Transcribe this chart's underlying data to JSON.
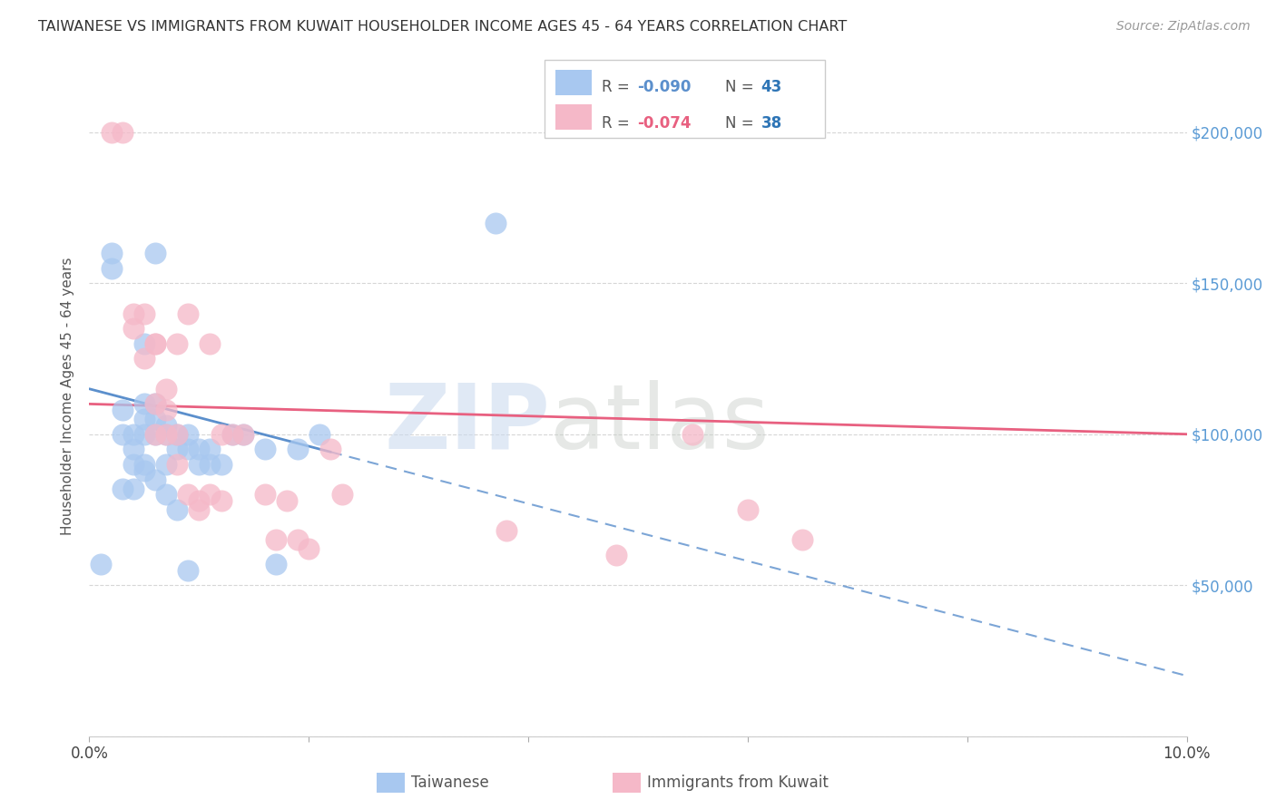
{
  "title": "TAIWANESE VS IMMIGRANTS FROM KUWAIT HOUSEHOLDER INCOME AGES 45 - 64 YEARS CORRELATION CHART",
  "source": "Source: ZipAtlas.com",
  "ylabel": "Householder Income Ages 45 - 64 years",
  "xlim": [
    0.0,
    0.1
  ],
  "ylim": [
    0,
    225000
  ],
  "yticks": [
    0,
    50000,
    100000,
    150000,
    200000
  ],
  "right_ytick_labels": [
    "",
    "$50,000",
    "$100,000",
    "$150,000",
    "$200,000"
  ],
  "blue_R": -0.09,
  "blue_N": 43,
  "pink_R": -0.074,
  "pink_N": 38,
  "blue_color": "#A8C8F0",
  "pink_color": "#F5B8C8",
  "blue_line_color": "#5B8FCC",
  "pink_line_color": "#E86080",
  "watermark_zip": "ZIP",
  "watermark_atlas": "atlas",
  "taiwanese_x": [
    0.001,
    0.002,
    0.002,
    0.003,
    0.003,
    0.003,
    0.004,
    0.004,
    0.004,
    0.004,
    0.005,
    0.005,
    0.005,
    0.005,
    0.005,
    0.005,
    0.006,
    0.006,
    0.006,
    0.006,
    0.006,
    0.007,
    0.007,
    0.007,
    0.007,
    0.008,
    0.008,
    0.008,
    0.009,
    0.009,
    0.009,
    0.01,
    0.01,
    0.011,
    0.011,
    0.012,
    0.013,
    0.014,
    0.016,
    0.017,
    0.019,
    0.021,
    0.037
  ],
  "taiwanese_y": [
    57000,
    155000,
    160000,
    82000,
    100000,
    108000,
    82000,
    90000,
    95000,
    100000,
    110000,
    88000,
    90000,
    100000,
    105000,
    130000,
    85000,
    100000,
    105000,
    110000,
    160000,
    80000,
    90000,
    100000,
    103000,
    75000,
    95000,
    100000,
    55000,
    95000,
    100000,
    90000,
    95000,
    90000,
    95000,
    90000,
    100000,
    100000,
    95000,
    57000,
    95000,
    100000,
    170000
  ],
  "kuwait_x": [
    0.002,
    0.003,
    0.004,
    0.004,
    0.005,
    0.005,
    0.006,
    0.006,
    0.006,
    0.006,
    0.007,
    0.007,
    0.007,
    0.008,
    0.008,
    0.008,
    0.009,
    0.009,
    0.01,
    0.01,
    0.011,
    0.011,
    0.012,
    0.012,
    0.013,
    0.014,
    0.016,
    0.017,
    0.018,
    0.019,
    0.02,
    0.022,
    0.023,
    0.038,
    0.048,
    0.055,
    0.06,
    0.065
  ],
  "kuwait_y": [
    200000,
    200000,
    135000,
    140000,
    125000,
    140000,
    100000,
    110000,
    130000,
    130000,
    100000,
    108000,
    115000,
    90000,
    100000,
    130000,
    80000,
    140000,
    75000,
    78000,
    80000,
    130000,
    100000,
    78000,
    100000,
    100000,
    80000,
    65000,
    78000,
    65000,
    62000,
    95000,
    80000,
    68000,
    60000,
    100000,
    75000,
    65000
  ]
}
